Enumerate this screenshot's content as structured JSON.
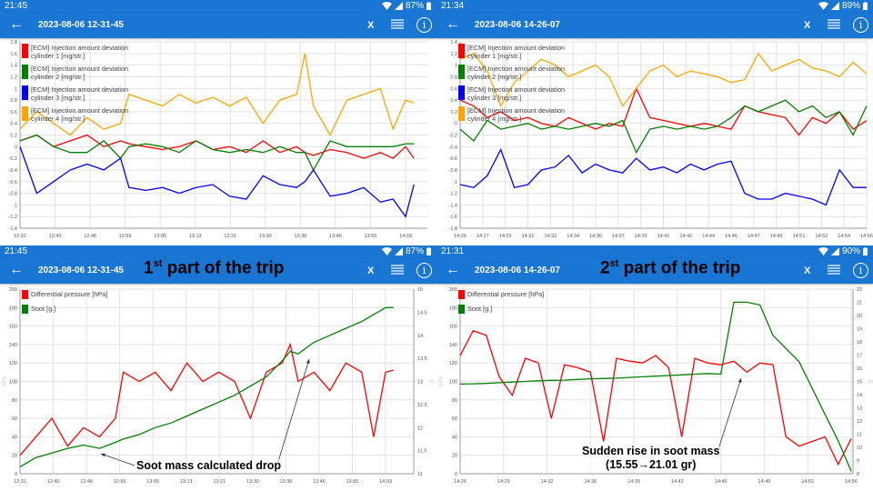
{
  "panels": [
    {
      "status": {
        "time": "21:45",
        "battery": "87%"
      },
      "appbar": {
        "date": "2023-08-06 12-31-45",
        "x_label": "X"
      }
    },
    {
      "status": {
        "time": "21:34",
        "battery": "89%"
      },
      "appbar": {
        "date": "2023-08-06 14-26-07",
        "x_label": "X"
      }
    },
    {
      "status": {
        "time": "21:45",
        "battery": "87%"
      },
      "appbar": {
        "date": "2023-08-06 12-31-45",
        "x_label": "X"
      },
      "title": {
        "num": "1",
        "sup": "st",
        "rest": " part of the trip"
      }
    },
    {
      "status": {
        "time": "21:31",
        "battery": "90%"
      },
      "appbar": {
        "date": "2023-08-06 14-26-07",
        "x_label": "X"
      },
      "title": {
        "num": "2",
        "sup": "st",
        "rest": " part of the trip"
      }
    }
  ],
  "annotations": {
    "drop": "Soot mass calculated drop",
    "rise_line1": "Sudden rise in soot mass",
    "rise_line2": "(15.55→21.01 gr)"
  },
  "chart_data": [
    {
      "type": "line",
      "ylim": [
        -1.4,
        1.8
      ],
      "yticks": [
        "-1.4",
        "-1.2",
        "-1",
        "-0.8",
        "-0.6",
        "-0.4",
        "-0.2",
        "0",
        "0.2",
        "0.4",
        "0.6",
        "0.8",
        "1",
        "1.2",
        "1.4",
        "1.6",
        "1.8"
      ],
      "xticks": [
        "12:31",
        "12:40",
        "12:48",
        "12:56",
        "13:05",
        "13:13",
        "13:21",
        "13:30",
        "13:38",
        "13:46",
        "13:55",
        "14:03"
      ],
      "grid": true,
      "legend": "top-left",
      "x": [
        "12:31",
        "12:35",
        "12:39",
        "12:43",
        "12:47",
        "12:51",
        "12:55",
        "12:57",
        "13:01",
        "13:05",
        "13:09",
        "13:13",
        "13:17",
        "13:21",
        "13:25",
        "13:29",
        "13:33",
        "13:37",
        "13:39",
        "13:41",
        "13:45",
        "13:49",
        "13:53",
        "13:57",
        "14:00",
        "14:03",
        "14:05"
      ],
      "series": [
        {
          "name": "[ECM] Injection amount deviation cylinder 1 [mg/str.]",
          "color": "#ff0000",
          "values": [
            0.1,
            0.2,
            0,
            0.1,
            0.2,
            0,
            0.1,
            0.05,
            0,
            -0.05,
            0,
            0.1,
            -0.05,
            0,
            -0.1,
            0.1,
            -0.1,
            0,
            -0.1,
            -0.15,
            -0.05,
            -0.1,
            -0.2,
            -0.1,
            -0.2,
            0,
            -0.2
          ]
        },
        {
          "name": "[ECM] Injection amount deviation cylinder 2 [mg/str.]",
          "color": "#008000",
          "values": [
            0.1,
            0.2,
            0,
            -0.1,
            -0.1,
            0.1,
            -0.2,
            0,
            0.05,
            0,
            -0.1,
            0.1,
            -0.05,
            -0.1,
            -0.05,
            -0.1,
            0,
            -0.1,
            -0.1,
            -0.4,
            0.1,
            0,
            0,
            0,
            0,
            0.05,
            0.05
          ]
        },
        {
          "name": "[ECM] Injection amount deviation cylinder 3 [mg/str.]",
          "color": "#0000ff",
          "values": [
            0,
            -0.8,
            -0.6,
            -0.4,
            -0.3,
            -0.4,
            -0.2,
            -0.7,
            -0.75,
            -0.7,
            -0.8,
            -0.7,
            -0.65,
            -0.85,
            -0.9,
            -0.5,
            -0.65,
            -0.7,
            -0.6,
            -0.4,
            -0.85,
            -0.8,
            -0.7,
            -0.95,
            -0.9,
            -1.2,
            -0.65
          ]
        },
        {
          "name": "[ECM] Injection amount deviation cylinder 4 [mg/str.]",
          "color": "#ffa500",
          "values": [
            0.3,
            0.6,
            0.4,
            0.2,
            0.5,
            0.3,
            0.4,
            0.9,
            0.8,
            0.7,
            0.9,
            0.75,
            0.85,
            0.7,
            0.85,
            0.4,
            0.8,
            0.9,
            1.6,
            0.7,
            0.2,
            0.8,
            0.9,
            1.0,
            0.3,
            0.8,
            0.75
          ]
        }
      ]
    },
    {
      "type": "line",
      "ylim": [
        -1.8,
        1.4
      ],
      "yticks": [
        "-1.8",
        "-1.6",
        "-1.4",
        "-1.2",
        "-1",
        "-0.8",
        "-0.6",
        "-0.4",
        "-0.2",
        "0",
        "0.2",
        "0.4",
        "0.6",
        "0.8",
        "1",
        "1.2",
        "1.4"
      ],
      "xticks": [
        "14:26",
        "14:27",
        "14:29",
        "14:31",
        "14:32",
        "14:34",
        "14:36",
        "14:37",
        "14:39",
        "14:41",
        "14:42",
        "14:44",
        "14:46",
        "14:47",
        "14:49",
        "14:51",
        "14:52",
        "14:54",
        "14:56"
      ],
      "grid": true,
      "legend": "top-left",
      "x": [
        "14:26",
        "14:27",
        "14:28",
        "14:29",
        "14:30",
        "14:31",
        "14:32",
        "14:33",
        "14:34",
        "14:35",
        "14:36",
        "14:37",
        "14:38",
        "14:39",
        "14:40",
        "14:41",
        "14:42",
        "14:43",
        "14:44",
        "14:45",
        "14:46",
        "14:47",
        "14:48",
        "14:49",
        "14:50",
        "14:51",
        "14:52",
        "14:53",
        "14:54",
        "14:55",
        "14:56"
      ],
      "series": [
        {
          "name": "[ECM] Injection amount deviation cylinder 1 [mg/str.]",
          "color": "#ff0000",
          "values": [
            0.4,
            0.3,
            0.1,
            0.2,
            0.05,
            0.1,
            0,
            -0.05,
            0.1,
            0,
            -0.1,
            0,
            -0.05,
            0.6,
            0.1,
            0.05,
            0,
            -0.05,
            0,
            -0.05,
            -0.1,
            0.3,
            0.2,
            0.15,
            0.1,
            -0.2,
            0.1,
            0,
            0.2,
            -0.1,
            0.05
          ]
        },
        {
          "name": "[ECM] Injection amount deviation cylinder 2 [mg/str.]",
          "color": "#008000",
          "values": [
            -0.1,
            -0.3,
            0.05,
            -0.1,
            -0.05,
            0,
            -0.1,
            -0.05,
            -0.1,
            -0.05,
            0,
            -0.05,
            0.05,
            -0.5,
            -0.1,
            -0.05,
            -0.1,
            -0.05,
            -0.1,
            -0.05,
            0.1,
            0.3,
            0.2,
            0.3,
            0.4,
            0.2,
            0.3,
            0.1,
            0.2,
            -0.2,
            0.3
          ]
        },
        {
          "name": "[ECM] Injection amount deviation cylinder 3 [mg/str.]",
          "color": "#0000ff",
          "values": [
            -1.05,
            -1.1,
            -0.9,
            -0.45,
            -1.1,
            -1.05,
            -0.8,
            -0.75,
            -0.55,
            -0.85,
            -0.7,
            -0.8,
            -0.85,
            -0.6,
            -0.8,
            -0.75,
            -0.85,
            -0.7,
            -0.8,
            -0.7,
            -0.65,
            -1.2,
            -1.3,
            -1.3,
            -1.2,
            -1.25,
            -1.3,
            -1.4,
            -0.8,
            -1.1,
            -1.1
          ]
        },
        {
          "name": "[ECM] Injection amount deviation cylinder 4 [mg/str.]",
          "color": "#ffa500",
          "values": [
            1.1,
            1.2,
            0.9,
            0.3,
            0.7,
            0.9,
            1.1,
            1.0,
            0.8,
            0.9,
            1.0,
            0.8,
            0.3,
            0.6,
            0.9,
            1.0,
            0.8,
            0.9,
            0.85,
            0.8,
            0.7,
            0.75,
            1.2,
            0.9,
            1.0,
            1.1,
            0.95,
            0.9,
            0.8,
            1.05,
            0.85
          ]
        }
      ]
    },
    {
      "type": "line",
      "ylabel": "hPa",
      "y2label": "g",
      "ylim": [
        0,
        200
      ],
      "y2lim": [
        11,
        15
      ],
      "yticks": [
        "0",
        "20",
        "40",
        "60",
        "80",
        "100",
        "120",
        "140",
        "160",
        "180",
        "200"
      ],
      "y2ticks": [
        "11",
        "11.5",
        "12",
        "12.5",
        "13",
        "13.5",
        "14",
        "14.5",
        "15"
      ],
      "xticks": [
        "12:31",
        "12:40",
        "12:48",
        "12:56",
        "13:05",
        "13:13",
        "13:21",
        "13:30",
        "13:38",
        "13:46",
        "13:55",
        "14:03"
      ],
      "grid": true,
      "legend": "top-left",
      "x": [
        "12:31",
        "12:35",
        "12:39",
        "12:43",
        "12:47",
        "12:51",
        "12:55",
        "12:57",
        "13:01",
        "13:05",
        "13:09",
        "13:13",
        "13:17",
        "13:21",
        "13:25",
        "13:29",
        "13:33",
        "13:37",
        "13:39",
        "13:41",
        "13:45",
        "13:49",
        "13:53",
        "13:57",
        "14:00",
        "14:03",
        "14:05"
      ],
      "series": [
        {
          "name": "Differential pressure [hPa]",
          "color": "#ff0000",
          "axis": "left",
          "values": [
            20,
            40,
            60,
            30,
            50,
            40,
            60,
            110,
            100,
            110,
            90,
            120,
            100,
            110,
            100,
            60,
            110,
            120,
            140,
            100,
            110,
            90,
            120,
            110,
            40,
            110,
            112
          ]
        },
        {
          "name": "Soot [g.]",
          "color": "#008000",
          "axis": "right",
          "values": [
            11.15,
            11.35,
            11.45,
            11.55,
            11.62,
            11.55,
            11.68,
            11.75,
            11.85,
            12.0,
            12.1,
            12.25,
            12.4,
            12.55,
            12.7,
            12.9,
            13.1,
            13.45,
            13.65,
            13.6,
            13.85,
            14.0,
            14.15,
            14.3,
            14.45,
            14.6,
            14.6
          ]
        }
      ]
    },
    {
      "type": "line",
      "ylabel": "hPa",
      "y2label": "g",
      "ylim": [
        0,
        200
      ],
      "y2lim": [
        8,
        22
      ],
      "yticks": [
        "0",
        "20",
        "40",
        "60",
        "80",
        "100",
        "120",
        "140",
        "160",
        "180",
        "200"
      ],
      "y2ticks": [
        "8",
        "9",
        "10",
        "11",
        "12",
        "13",
        "14",
        "15",
        "16",
        "17",
        "18",
        "19",
        "20",
        "21",
        "22"
      ],
      "xticks": [
        "14:26",
        "14:29",
        "14:32",
        "14:36",
        "14:39",
        "14:42",
        "14:46",
        "14:49",
        "14:52",
        "14:56"
      ],
      "grid": true,
      "legend": "top-left",
      "x": [
        "14:26",
        "14:27",
        "14:28",
        "14:29",
        "14:30",
        "14:31",
        "14:32",
        "14:33",
        "14:34",
        "14:35",
        "14:36",
        "14:37",
        "14:38",
        "14:39",
        "14:40",
        "14:41",
        "14:42",
        "14:43",
        "14:44",
        "14:45",
        "14:46",
        "14:47",
        "14:48",
        "14:49",
        "14:50",
        "14:51",
        "14:52",
        "14:53",
        "14:54",
        "14:55",
        "14:56"
      ],
      "series": [
        {
          "name": "Differential pressure [hPa]",
          "color": "#ff0000",
          "axis": "left",
          "values": [
            128,
            155,
            150,
            105,
            85,
            125,
            120,
            60,
            118,
            115,
            110,
            35,
            125,
            122,
            120,
            128,
            115,
            40,
            125,
            120,
            118,
            122,
            110,
            120,
            118,
            40,
            30,
            35,
            40,
            10,
            38
          ]
        },
        {
          "name": "Soot [g.]",
          "color": "#008000",
          "axis": "right",
          "values": [
            14.8,
            14.82,
            14.85,
            14.9,
            14.95,
            15.0,
            15.05,
            15.08,
            15.1,
            15.15,
            15.2,
            15.22,
            15.25,
            15.3,
            15.35,
            15.4,
            15.45,
            15.5,
            15.55,
            15.6,
            15.55,
            21.01,
            21.01,
            20.8,
            18.5,
            17.5,
            16.5,
            14.5,
            12.5,
            10.5,
            8.2
          ]
        }
      ]
    }
  ]
}
